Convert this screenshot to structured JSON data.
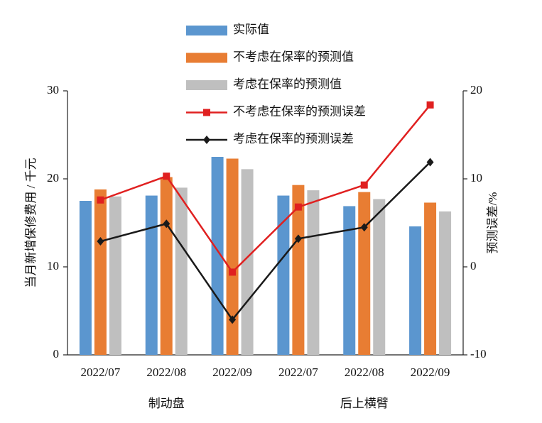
{
  "chart_data": {
    "type": "bar_line",
    "categories": [
      "2022/07",
      "2022/08",
      "2022/09",
      "2022/07",
      "2022/08",
      "2022/09"
    ],
    "group_labels": [
      "制动盘",
      "后上横臂"
    ],
    "y_label": "当月新增保修费用 / 千元",
    "y2_label": "预测误差/%",
    "ylim": [
      0,
      30
    ],
    "yticks": [
      0,
      10,
      20,
      30
    ],
    "y2lim": [
      -10,
      20
    ],
    "y2ticks": [
      -10,
      0,
      10,
      20
    ],
    "series": [
      {
        "name": "实际值",
        "kind": "bar",
        "color": "#5b96cf",
        "values": [
          17.5,
          18.1,
          22.5,
          18.1,
          16.9,
          14.6
        ]
      },
      {
        "name": "不考虑在保率的预测值",
        "kind": "bar",
        "color": "#e87d33",
        "values": [
          18.8,
          20.2,
          22.3,
          19.3,
          18.5,
          17.3
        ]
      },
      {
        "name": "考虑在保率的预测值",
        "kind": "bar",
        "color": "#bfbfbf",
        "values": [
          18.0,
          19.0,
          21.1,
          18.7,
          17.7,
          16.3
        ]
      },
      {
        "name": "不考虑在保率的预测误差",
        "kind": "line",
        "marker": "square",
        "axis": "y2",
        "color": "#e02020",
        "values": [
          7.6,
          10.3,
          -0.6,
          6.8,
          9.3,
          18.4
        ]
      },
      {
        "name": "考虑在保率的预测误差",
        "kind": "line",
        "marker": "diamond",
        "axis": "y2",
        "color": "#1a1a1a",
        "values": [
          2.9,
          4.9,
          -6.0,
          3.2,
          4.5,
          11.9
        ]
      }
    ]
  }
}
